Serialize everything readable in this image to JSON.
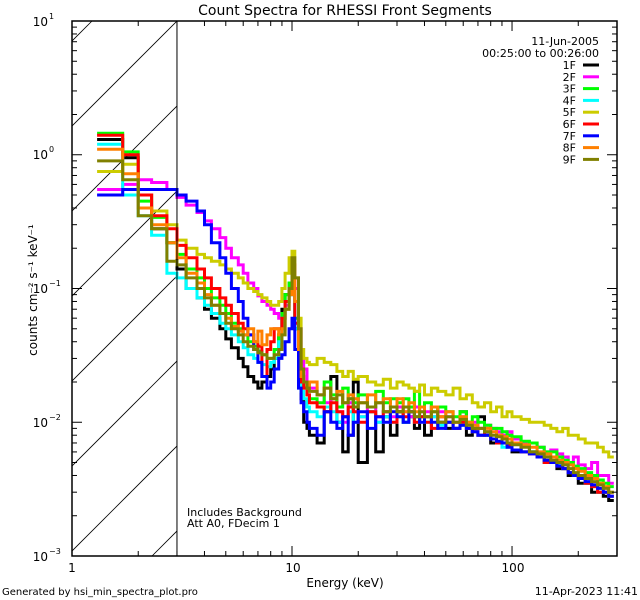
{
  "chart_data": {
    "type": "line",
    "title": "Count Spectra for RHESSI Front Segments",
    "xlabel": "Energy (keV)",
    "ylabel": "counts cm⁻² s⁻¹ keV⁻¹",
    "xscale": "log",
    "yscale": "log",
    "xlim": [
      1,
      300
    ],
    "ylim": [
      0.001,
      10
    ],
    "x_tick_labels": [
      "1",
      "10",
      "100"
    ],
    "y_tick_labels": [
      {
        "base": "10",
        "exp": "1"
      },
      {
        "base": "10",
        "exp": "0"
      },
      {
        "base": "10",
        "exp": "−1"
      },
      {
        "base": "10",
        "exp": "−2"
      },
      {
        "base": "10",
        "exp": "−3"
      }
    ],
    "hatched_region_keV": [
      1,
      3
    ],
    "legend_placement": "top-right",
    "legend_header": [
      "11-Jun-2005",
      "00:25:00 to 00:26:00"
    ],
    "annotations": [
      "Includes Background",
      "Att A0, FDecim 1"
    ],
    "footer_left": "Generated by hsi_min_spectra_plot.pro",
    "footer_right": "11-Apr-2023 11:41",
    "bin_edges_keV": [
      1.3,
      1.7,
      2.0,
      2.3,
      2.7,
      3.0,
      3.3,
      3.7,
      4.0,
      4.3,
      4.7,
      5.0,
      5.3,
      5.7,
      6.0,
      6.3,
      6.7,
      7.0,
      7.3,
      7.7,
      8.0,
      8.3,
      8.7,
      9.0,
      9.3,
      9.7,
      10.0,
      10.3,
      10.7,
      11.0,
      11.3,
      11.7,
      12.0,
      13,
      14,
      15,
      16,
      17,
      18,
      19,
      20,
      22,
      24,
      26,
      28,
      30,
      32,
      34,
      36,
      38,
      40,
      43,
      46,
      50,
      54,
      58,
      62,
      66,
      70,
      75,
      80,
      85,
      90,
      95,
      100,
      110,
      120,
      130,
      140,
      150,
      160,
      170,
      180,
      190,
      200,
      215,
      230,
      245,
      260,
      275,
      290
    ],
    "series": [
      {
        "name": "1F",
        "color": "#000000",
        "values": [
          1.3,
          0.95,
          0.5,
          0.28,
          0.22,
          0.14,
          0.1,
          0.085,
          0.07,
          0.06,
          0.05,
          0.042,
          0.036,
          0.03,
          0.026,
          0.022,
          0.02,
          0.018,
          0.02,
          0.022,
          0.025,
          0.03,
          0.045,
          0.07,
          0.09,
          0.1,
          0.09,
          0.05,
          0.025,
          0.015,
          0.01,
          0.009,
          0.008,
          0.007,
          0.012,
          0.022,
          0.01,
          0.006,
          0.008,
          0.02,
          0.005,
          0.012,
          0.006,
          0.011,
          0.008,
          0.012,
          0.01,
          0.011,
          0.009,
          0.011,
          0.008,
          0.013,
          0.01,
          0.009,
          0.009,
          0.012,
          0.008,
          0.009,
          0.011,
          0.008,
          0.007,
          0.008,
          0.007,
          0.008,
          0.006,
          0.007,
          0.006,
          0.0055,
          0.005,
          0.005,
          0.0045,
          0.0045,
          0.004,
          0.004,
          0.0035,
          0.0035,
          0.003,
          0.003,
          0.0028,
          0.0026
        ]
      },
      {
        "name": "2F",
        "color": "#ff00ff",
        "values": [
          0.55,
          0.6,
          0.65,
          0.62,
          0.55,
          0.48,
          0.42,
          0.37,
          0.32,
          0.28,
          0.24,
          0.2,
          0.17,
          0.15,
          0.13,
          0.11,
          0.1,
          0.088,
          0.08,
          0.075,
          0.07,
          0.065,
          0.06,
          0.06,
          0.075,
          0.11,
          0.15,
          0.1,
          0.05,
          0.03,
          0.025,
          0.02,
          0.018,
          0.016,
          0.014,
          0.015,
          0.012,
          0.01,
          0.014,
          0.012,
          0.011,
          0.013,
          0.01,
          0.012,
          0.011,
          0.013,
          0.012,
          0.011,
          0.013,
          0.012,
          0.012,
          0.011,
          0.012,
          0.011,
          0.01,
          0.011,
          0.01,
          0.01,
          0.009,
          0.0095,
          0.009,
          0.0085,
          0.008,
          0.0085,
          0.0075,
          0.007,
          0.007,
          0.0065,
          0.006,
          0.0062,
          0.0058,
          0.0055,
          0.005,
          0.0055,
          0.0048,
          0.0045,
          0.005,
          0.004,
          0.004,
          0.0035
        ]
      },
      {
        "name": "3F",
        "color": "#00ff00",
        "values": [
          1.45,
          1.05,
          0.45,
          0.34,
          0.22,
          0.18,
          0.14,
          0.12,
          0.1,
          0.085,
          0.075,
          0.065,
          0.055,
          0.05,
          0.045,
          0.04,
          0.037,
          0.034,
          0.032,
          0.03,
          0.03,
          0.035,
          0.045,
          0.065,
          0.09,
          0.11,
          0.1,
          0.06,
          0.03,
          0.02,
          0.018,
          0.016,
          0.015,
          0.014,
          0.02,
          0.016,
          0.013,
          0.018,
          0.015,
          0.014,
          0.016,
          0.013,
          0.017,
          0.014,
          0.015,
          0.014,
          0.015,
          0.013,
          0.017,
          0.013,
          0.014,
          0.012,
          0.013,
          0.012,
          0.011,
          0.012,
          0.01,
          0.011,
          0.01,
          0.0095,
          0.009,
          0.009,
          0.0085,
          0.008,
          0.0078,
          0.0072,
          0.007,
          0.0065,
          0.006,
          0.006,
          0.0055,
          0.0052,
          0.005,
          0.0047,
          0.0045,
          0.0042,
          0.004,
          0.0037,
          0.0035,
          0.0033
        ]
      },
      {
        "name": "4F",
        "color": "#00ffff",
        "values": [
          1.2,
          0.5,
          0.35,
          0.25,
          0.13,
          0.12,
          0.1,
          0.085,
          0.075,
          0.065,
          0.055,
          0.05,
          0.045,
          0.04,
          0.036,
          0.032,
          0.03,
          0.028,
          0.027,
          0.026,
          0.028,
          0.03,
          0.04,
          0.06,
          0.08,
          0.1,
          0.09,
          0.05,
          0.025,
          0.017,
          0.015,
          0.013,
          0.012,
          0.011,
          0.013,
          0.012,
          0.01,
          0.011,
          0.012,
          0.01,
          0.011,
          0.012,
          0.01,
          0.011,
          0.01,
          0.011,
          0.01,
          0.012,
          0.01,
          0.011,
          0.01,
          0.011,
          0.0095,
          0.01,
          0.009,
          0.0095,
          0.009,
          0.0085,
          0.008,
          0.008,
          0.0075,
          0.007,
          0.0065,
          0.007,
          0.0062,
          0.006,
          0.006,
          0.0055,
          0.005,
          0.005,
          0.0048,
          0.0045,
          0.0042,
          0.004,
          0.0038,
          0.0035,
          0.0033,
          0.003,
          0.003,
          0.0028
        ]
      },
      {
        "name": "5F",
        "color": "#cccc00",
        "values": [
          0.75,
          0.85,
          0.5,
          0.38,
          0.3,
          0.23,
          0.2,
          0.18,
          0.17,
          0.16,
          0.15,
          0.14,
          0.13,
          0.12,
          0.11,
          0.1,
          0.095,
          0.09,
          0.085,
          0.08,
          0.075,
          0.075,
          0.08,
          0.1,
          0.13,
          0.17,
          0.19,
          0.12,
          0.06,
          0.035,
          0.03,
          0.028,
          0.027,
          0.03,
          0.028,
          0.027,
          0.024,
          0.022,
          0.024,
          0.021,
          0.022,
          0.02,
          0.019,
          0.021,
          0.018,
          0.02,
          0.019,
          0.018,
          0.017,
          0.019,
          0.016,
          0.018,
          0.017,
          0.016,
          0.018,
          0.015,
          0.016,
          0.014,
          0.013,
          0.014,
          0.012,
          0.013,
          0.011,
          0.012,
          0.011,
          0.0105,
          0.01,
          0.01,
          0.0095,
          0.009,
          0.0085,
          0.009,
          0.008,
          0.008,
          0.0075,
          0.007,
          0.007,
          0.0065,
          0.006,
          0.0055
        ]
      },
      {
        "name": "6F",
        "color": "#ff0000",
        "values": [
          1.4,
          1.0,
          0.5,
          0.35,
          0.28,
          0.21,
          0.17,
          0.14,
          0.12,
          0.1,
          0.085,
          0.075,
          0.065,
          0.055,
          0.05,
          0.045,
          0.04,
          0.037,
          0.022,
          0.035,
          0.04,
          0.05,
          0.05,
          0.06,
          0.08,
          0.1,
          0.1,
          0.055,
          0.028,
          0.02,
          0.018,
          0.016,
          0.014,
          0.013,
          0.012,
          0.014,
          0.012,
          0.011,
          0.013,
          0.012,
          0.01,
          0.012,
          0.011,
          0.012,
          0.01,
          0.012,
          0.011,
          0.012,
          0.01,
          0.011,
          0.01,
          0.009,
          0.011,
          0.01,
          0.009,
          0.01,
          0.009,
          0.0085,
          0.008,
          0.0085,
          0.0075,
          0.007,
          0.007,
          0.0068,
          0.0062,
          0.006,
          0.0058,
          0.0055,
          0.005,
          0.005,
          0.0047,
          0.0045,
          0.0042,
          0.004,
          0.0038,
          0.0035,
          0.0033,
          0.003,
          0.003,
          0.0028
        ]
      },
      {
        "name": "7F",
        "color": "#0000ff",
        "values": [
          0.5,
          0.55,
          0.55,
          0.55,
          0.55,
          0.5,
          0.45,
          0.38,
          0.3,
          0.22,
          0.17,
          0.13,
          0.1,
          0.08,
          0.06,
          0.045,
          0.035,
          0.028,
          0.022,
          0.018,
          0.02,
          0.025,
          0.03,
          0.032,
          0.04,
          0.05,
          0.06,
          0.035,
          0.018,
          0.014,
          0.012,
          0.01,
          0.009,
          0.008,
          0.012,
          0.01,
          0.009,
          0.011,
          0.008,
          0.01,
          0.012,
          0.009,
          0.011,
          0.01,
          0.012,
          0.011,
          0.01,
          0.012,
          0.011,
          0.01,
          0.011,
          0.01,
          0.009,
          0.01,
          0.009,
          0.0095,
          0.009,
          0.0085,
          0.008,
          0.008,
          0.0075,
          0.0072,
          0.007,
          0.0065,
          0.0062,
          0.006,
          0.0058,
          0.0055,
          0.0052,
          0.005,
          0.0047,
          0.0045,
          0.0042,
          0.004,
          0.0038,
          0.0036,
          0.0034,
          0.0032,
          0.003,
          0.0028
        ]
      },
      {
        "name": "8F",
        "color": "#ff8000",
        "values": [
          1.1,
          0.72,
          0.4,
          0.3,
          0.22,
          0.17,
          0.13,
          0.11,
          0.09,
          0.075,
          0.065,
          0.06,
          0.052,
          0.048,
          0.045,
          0.05,
          0.04,
          0.048,
          0.038,
          0.045,
          0.05,
          0.05,
          0.045,
          0.05,
          0.07,
          0.09,
          0.15,
          0.08,
          0.035,
          0.022,
          0.02,
          0.018,
          0.02,
          0.016,
          0.018,
          0.015,
          0.017,
          0.014,
          0.016,
          0.015,
          0.014,
          0.016,
          0.014,
          0.015,
          0.013,
          0.015,
          0.012,
          0.014,
          0.012,
          0.013,
          0.011,
          0.013,
          0.011,
          0.012,
          0.01,
          0.011,
          0.01,
          0.0095,
          0.009,
          0.009,
          0.0085,
          0.008,
          0.0078,
          0.0075,
          0.007,
          0.0068,
          0.0065,
          0.006,
          0.0058,
          0.0055,
          0.0052,
          0.005,
          0.0048,
          0.0045,
          0.0043,
          0.004,
          0.0038,
          0.0035,
          0.0033,
          0.003
        ]
      },
      {
        "name": "9F",
        "color": "#808000",
        "values": [
          0.9,
          0.65,
          0.35,
          0.28,
          0.16,
          0.15,
          0.12,
          0.1,
          0.085,
          0.075,
          0.065,
          0.055,
          0.05,
          0.045,
          0.04,
          0.037,
          0.035,
          0.033,
          0.032,
          0.03,
          0.03,
          0.032,
          0.035,
          0.045,
          0.07,
          0.1,
          0.17,
          0.12,
          0.05,
          0.025,
          0.02,
          0.018,
          0.017,
          0.016,
          0.018,
          0.015,
          0.016,
          0.014,
          0.015,
          0.013,
          0.014,
          0.013,
          0.014,
          0.012,
          0.013,
          0.012,
          0.013,
          0.012,
          0.011,
          0.012,
          0.011,
          0.012,
          0.01,
          0.011,
          0.01,
          0.0105,
          0.0095,
          0.009,
          0.009,
          0.0085,
          0.008,
          0.0078,
          0.0075,
          0.007,
          0.0068,
          0.0065,
          0.006,
          0.0058,
          0.0055,
          0.0052,
          0.005,
          0.0048,
          0.0045,
          0.0042,
          0.004,
          0.0038,
          0.0036,
          0.0034,
          0.0032,
          0.003
        ]
      }
    ]
  }
}
